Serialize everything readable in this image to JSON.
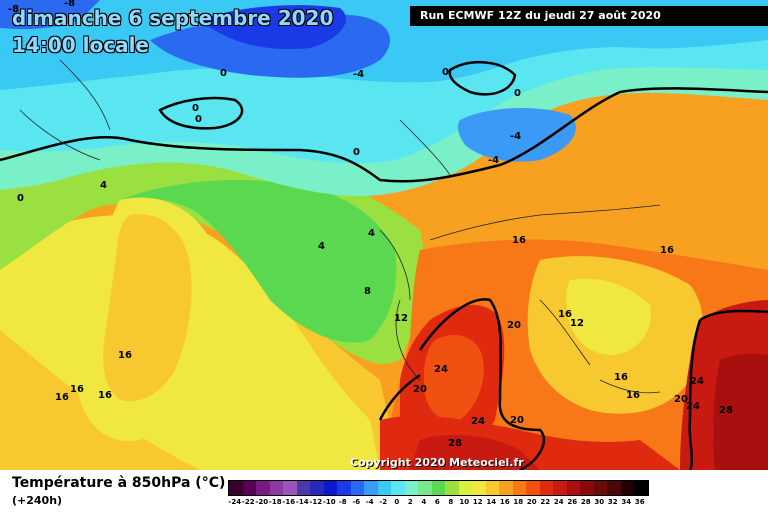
{
  "title": {
    "date": "dimanche 6 septembre 2020",
    "time": "14:00 locale"
  },
  "run_info": "Run ECMWF 12Z du jeudi 27 août 2020",
  "copyright": "Copyright 2020 Meteociel.fr",
  "parameter": "Température à 850hPa (°C)",
  "lead_time": "(+240h)",
  "legend": {
    "ticks": [
      "-24",
      "-22",
      "-20",
      "-18",
      "-16",
      "-14",
      "-12",
      "-10",
      "-8",
      "-6",
      "-4",
      "-2",
      "0",
      "2",
      "4",
      "6",
      "8",
      "10",
      "12",
      "14",
      "16",
      "18",
      "20",
      "22",
      "24",
      "26",
      "28",
      "30",
      "32",
      "34",
      "36"
    ],
    "colors": [
      "#3a0030",
      "#5a0055",
      "#7a1a80",
      "#8a3aa0",
      "#9a55b8",
      "#4a3aa8",
      "#2a2ab8",
      "#0a1ad0",
      "#1a3ae8",
      "#2a6af0",
      "#3a9af5",
      "#3ac8f5",
      "#5ae6f0",
      "#7af0c8",
      "#7ae88a",
      "#5ad850",
      "#9ae040",
      "#d8f040",
      "#f0e840",
      "#f8c830",
      "#f8a020",
      "#f87818",
      "#f05010",
      "#e02a10",
      "#c81a10",
      "#a81010",
      "#8a0a0a",
      "#6a0a0a",
      "#4a0505",
      "#200000",
      "#000000"
    ]
  },
  "contour_labels": [
    {
      "text": "-8"
    },
    {
      "text": "-8"
    },
    {
      "text": "0"
    },
    {
      "text": "0"
    },
    {
      "text": "0"
    },
    {
      "text": "-4"
    },
    {
      "text": "0"
    },
    {
      "text": "0"
    },
    {
      "text": "-4"
    },
    {
      "text": "-4"
    },
    {
      "text": "0"
    },
    {
      "text": "4"
    },
    {
      "text": "0"
    },
    {
      "text": "4"
    },
    {
      "text": "4"
    },
    {
      "text": "16"
    },
    {
      "text": "16"
    },
    {
      "text": "8"
    },
    {
      "text": "12"
    },
    {
      "text": "20"
    },
    {
      "text": "16"
    },
    {
      "text": "12"
    },
    {
      "text": "16"
    },
    {
      "text": "16"
    },
    {
      "text": "16"
    },
    {
      "text": "16"
    },
    {
      "text": "16"
    },
    {
      "text": "24"
    },
    {
      "text": "20"
    },
    {
      "text": "24"
    },
    {
      "text": "20"
    },
    {
      "text": "28"
    },
    {
      "text": "16"
    },
    {
      "text": "20"
    },
    {
      "text": "24"
    },
    {
      "text": "24"
    },
    {
      "text": "28"
    }
  ]
}
